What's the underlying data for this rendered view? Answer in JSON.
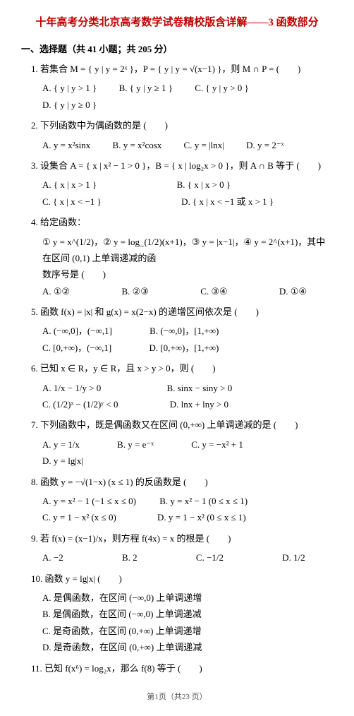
{
  "title": "十年高考分类北京高考数学试卷精校版含详解——3 函数部分",
  "section": "一、选择题（共 41 小题；共 205 分）",
  "q1": {
    "stem": "1. 若集合 M = { y | y = 2ˣ }，P = { y | y = √(x−1) }，则 M ∩ P = (　　)",
    "A": "A. { y | y > 1 }",
    "B": "B. { y | y ≥ 1 }",
    "C": "C. { y | y > 0 }",
    "D": "D. { y | y ≥ 0 }"
  },
  "q2": {
    "stem": "2. 下列函数中为偶函数的是 (　　)",
    "A": "A. y = x²sinx",
    "B": "B. y = x²cosx",
    "C": "C. y = |lnx|",
    "D": "D. y = 2⁻ˣ"
  },
  "q3": {
    "stem": "3. 设集合 A = { x | x² − 1 > 0 }，B = { x | log₂x > 0 }，则 A ∩ B 等于 (　　)",
    "A": "A. { x | x > 1 }",
    "B": "B. { x | x > 0 }",
    "C": "C. { x | x < −1 }",
    "D": "D. { x | x < −1 或 x > 1 }"
  },
  "q4": {
    "stem": "4. 给定函数：",
    "line2": "① y = x^(1/2)，② y = log_(1/2)(x+1)，③ y = |x−1|，④ y = 2^(x+1)，其中在区间 (0,1) 上单调递减的函",
    "line3": "数序号是 (　　)",
    "A": "A. ①②",
    "B": "B. ②③",
    "C": "C. ③④",
    "D": "D. ①④"
  },
  "q5": {
    "stem": "5. 函数 f(x) = |x| 和 g(x) = x(2−x) 的递增区间依次是 (　　)",
    "A": "A. (−∞,0]，(−∞,1]",
    "B": "B. (−∞,0]，[1,+∞)",
    "C": "C. [0,+∞)，(−∞,1]",
    "D": "D. [0,+∞)，[1,+∞)"
  },
  "q6": {
    "stem": "6. 已知 x ∈ R，y ∈ R，且 x > y > 0，则 (　　)",
    "A": "A. 1/x − 1/y > 0",
    "B": "B. sinx − siny > 0",
    "C": "C. (1/2)ˣ − (1/2)ʸ < 0",
    "D": "D. lnx + lny > 0"
  },
  "q7": {
    "stem": "7. 下列函数中，既是偶函数又在区间 (0,+∞) 上单调递减的是 (　　)",
    "A": "A. y = 1/x",
    "B": "B. y = e⁻ˣ",
    "C": "C. y = −x² + 1",
    "D": "D. y = lg|x|"
  },
  "q8": {
    "stem": "8. 函数 y = −√(1−x) (x ≤ 1) 的反函数是 (　　)",
    "A": "A. y = x² − 1 (−1 ≤ x ≤ 0)",
    "B": "B. y = x² − 1 (0 ≤ x ≤ 1)",
    "C": "C. y = 1 − x² (x ≤ 0)",
    "D": "D. y = 1 − x² (0 ≤ x ≤ 1)"
  },
  "q9": {
    "stem": "9. 若 f(x) = (x−1)/x，则方程 f(4x) = x 的根是 (　　)",
    "A": "A. −2",
    "B": "B. 2",
    "C": "C. −1/2",
    "D": "D. 1/2"
  },
  "q10": {
    "stem": "10. 函数 y = lg|x| (　　)",
    "A": "A. 是偶函数，在区间 (−∞,0) 上单调递增",
    "B": "B. 是偶函数，在区间 (−∞,0) 上单调递减",
    "C": "C. 是奇函数，在区间 (0,+∞) 上单调递增",
    "D": "D. 是奇函数，在区间 (0,+∞) 上单调递减"
  },
  "q11": {
    "stem": "11. 已知 f(x⁶) = log₂x，那么 f(8) 等于 (　　)"
  },
  "footer": "第1页（共23 页）"
}
